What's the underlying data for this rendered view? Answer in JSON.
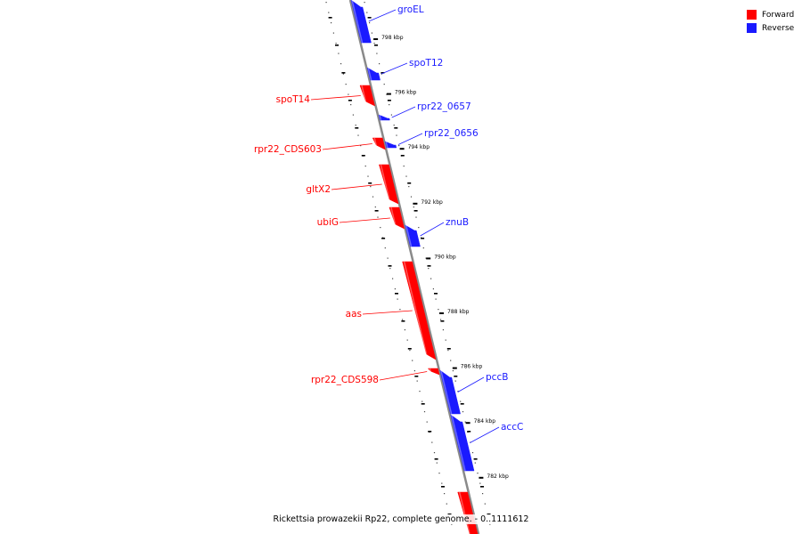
{
  "title": "Rickettsia prowazekii Rp22, complete genome. - 0..1111612",
  "legend": [
    {
      "label": "Forward",
      "color": "#ff0000"
    },
    {
      "label": "Reverse",
      "color": "#1a1aff"
    }
  ],
  "colors": {
    "forward": "#ff0000",
    "reverse": "#1a1aff",
    "backbone": "#8a8a8a"
  },
  "ticks": [
    {
      "label": "798 kbp",
      "kbp": 798
    },
    {
      "label": "796 kbp",
      "kbp": 796
    },
    {
      "label": "794 kbp",
      "kbp": 794
    },
    {
      "label": "792 kbp",
      "kbp": 792
    },
    {
      "label": "790 kbp",
      "kbp": 790
    },
    {
      "label": "788 kbp",
      "kbp": 788
    },
    {
      "label": "786 kbp",
      "kbp": 786
    },
    {
      "label": "784 kbp",
      "kbp": 784
    },
    {
      "label": "782 kbp",
      "kbp": 782
    }
  ],
  "genes": [
    {
      "name": "groEL",
      "strand": "reverse"
    },
    {
      "name": "spoT12",
      "strand": "reverse"
    },
    {
      "name": "spoT14",
      "strand": "forward"
    },
    {
      "name": "rpr22_0657",
      "strand": "reverse"
    },
    {
      "name": "rpr22_CDS603",
      "strand": "forward"
    },
    {
      "name": "rpr22_0656",
      "strand": "reverse"
    },
    {
      "name": "gltX2",
      "strand": "forward"
    },
    {
      "name": "ubiG",
      "strand": "forward"
    },
    {
      "name": "znuB",
      "strand": "reverse"
    },
    {
      "name": "aas",
      "strand": "forward"
    },
    {
      "name": "rpr22_CDS598",
      "strand": "forward"
    },
    {
      "name": "pccB",
      "strand": "reverse"
    },
    {
      "name": "accC",
      "strand": "reverse"
    },
    {
      "name": "",
      "strand": "forward"
    }
  ]
}
